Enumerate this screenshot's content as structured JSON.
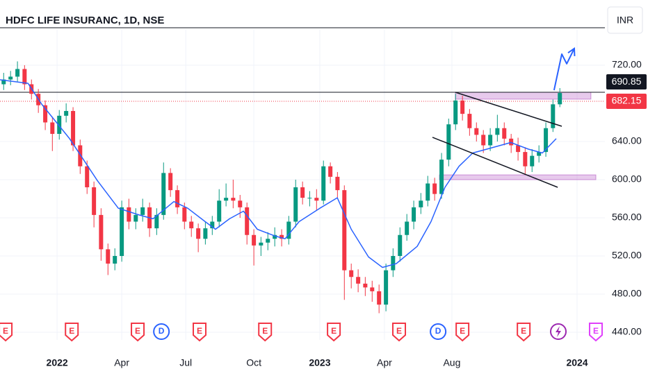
{
  "chart_data": {
    "type": "candlestick",
    "title": "HDFC LIFE INSURANC, 1D, NSE",
    "currency": "INR",
    "xlim": [
      -2.65,
      25.42
    ],
    "ylim": [
      432,
      757.8
    ],
    "xticks": [
      {
        "value": 0,
        "label": "2022"
      },
      {
        "value": 3.0,
        "label": "Apr"
      },
      {
        "value": 5.97,
        "label": "Jul"
      },
      {
        "value": 9.13,
        "label": "Oct"
      },
      {
        "value": 12.19,
        "label": "2023"
      },
      {
        "value": 15.19,
        "label": "Apr"
      },
      {
        "value": 18.32,
        "label": "Aug"
      },
      {
        "value": 24.13,
        "label": "2024"
      }
    ],
    "yticks": [
      {
        "value": 440,
        "label": "440.00"
      },
      {
        "value": 480,
        "label": "480.00"
      },
      {
        "value": 520,
        "label": "520.00"
      },
      {
        "value": 560,
        "label": "560.00"
      },
      {
        "value": 600,
        "label": "600.00"
      },
      {
        "value": 640,
        "label": "640.00"
      },
      {
        "value": 720,
        "label": "720.00"
      }
    ],
    "up_color": "#089981",
    "down_color": "#f23645",
    "x": [
      -2.48,
      -2.16,
      -1.84,
      -1.51,
      -1.19,
      -0.87,
      -0.55,
      -0.22,
      0.1,
      0.42,
      0.74,
      1.07,
      1.39,
      1.71,
      2.04,
      2.36,
      2.68,
      3.0,
      3.33,
      3.65,
      3.97,
      4.29,
      4.62,
      4.94,
      5.26,
      5.58,
      5.91,
      6.23,
      6.55,
      6.88,
      7.2,
      7.52,
      7.84,
      8.17,
      8.49,
      8.81,
      9.13,
      9.46,
      9.78,
      10.1,
      10.42,
      10.75,
      11.07,
      11.39,
      11.72,
      12.04,
      12.36,
      12.68,
      13.01,
      13.33,
      13.65,
      13.97,
      14.3,
      14.62,
      14.94,
      15.26,
      15.59,
      15.91,
      16.23,
      16.55,
      16.88,
      17.2,
      17.52,
      17.84,
      18.17,
      18.49,
      18.81,
      19.14,
      19.46,
      19.78,
      20.1,
      20.43,
      20.75,
      21.07,
      21.39,
      21.72,
      22.04,
      22.36,
      22.68,
      23.01,
      23.33
    ],
    "open": [
      700,
      705,
      708,
      716,
      700,
      690,
      678,
      660,
      648,
      667,
      672,
      636,
      614,
      592,
      563,
      527,
      512,
      520,
      571,
      556,
      563,
      571,
      549,
      563,
      607,
      589,
      571,
      556,
      549,
      538,
      549,
      556,
      578,
      581,
      578,
      571,
      542,
      531,
      534,
      538,
      542,
      538,
      556,
      592,
      581,
      581,
      578,
      614,
      603,
      589,
      505,
      498,
      491,
      487,
      483,
      469,
      505,
      520,
      542,
      556,
      571,
      578,
      596,
      585,
      621,
      658,
      683,
      669,
      654,
      647,
      636,
      647,
      654,
      643,
      636,
      629,
      614,
      625,
      629,
      654,
      679
    ],
    "high": [
      712,
      714,
      724,
      720,
      705,
      695,
      683,
      666,
      673,
      680,
      676,
      642,
      620,
      598,
      570,
      533,
      528,
      578,
      580,
      570,
      580,
      576,
      570,
      618,
      612,
      594,
      576,
      562,
      554,
      556,
      562,
      590,
      596,
      600,
      584,
      576,
      548,
      540,
      545,
      550,
      548,
      562,
      600,
      598,
      588,
      590,
      620,
      618,
      608,
      594,
      512,
      506,
      498,
      494,
      490,
      512,
      528,
      550,
      564,
      578,
      586,
      604,
      602,
      628,
      664,
      690,
      688,
      674,
      660,
      652,
      654,
      668,
      660,
      648,
      644,
      634,
      632,
      636,
      660,
      684,
      696
    ],
    "low": [
      694,
      699,
      703,
      694,
      684,
      670,
      652,
      630,
      642,
      660,
      630,
      606,
      585,
      550,
      515,
      500,
      505,
      514,
      548,
      548,
      556,
      540,
      542,
      558,
      582,
      564,
      548,
      540,
      524,
      532,
      542,
      550,
      572,
      570,
      560,
      532,
      510,
      520,
      526,
      530,
      530,
      532,
      550,
      574,
      572,
      568,
      574,
      596,
      580,
      474,
      486,
      482,
      478,
      472,
      460,
      462,
      498,
      514,
      536,
      548,
      564,
      572,
      578,
      580,
      614,
      652,
      662,
      646,
      640,
      628,
      630,
      640,
      636,
      628,
      620,
      606,
      608,
      618,
      624,
      650,
      676
    ],
    "close": [
      705,
      708,
      716,
      700,
      690,
      678,
      660,
      648,
      667,
      672,
      636,
      614,
      592,
      563,
      527,
      512,
      520,
      571,
      556,
      563,
      571,
      549,
      563,
      607,
      589,
      571,
      556,
      549,
      538,
      549,
      556,
      578,
      581,
      578,
      571,
      542,
      531,
      534,
      538,
      542,
      538,
      556,
      592,
      581,
      581,
      578,
      614,
      603,
      589,
      505,
      498,
      491,
      487,
      483,
      469,
      505,
      520,
      542,
      556,
      571,
      578,
      596,
      585,
      621,
      658,
      683,
      669,
      654,
      647,
      636,
      647,
      654,
      643,
      636,
      629,
      614,
      625,
      629,
      654,
      679,
      690.85
    ],
    "moving_average": {
      "color": "#2962ff",
      "x": [
        -2.65,
        -1.35,
        -0.71,
        0.58,
        1.87,
        2.84,
        3.81,
        4.45,
        5.42,
        6.06,
        6.87,
        7.35,
        8.0,
        8.65,
        9.29,
        10.1,
        10.58,
        11.23,
        12.19,
        13.0,
        13.65,
        14.45,
        15.1,
        15.74,
        16.71,
        17.35,
        18.0,
        18.65,
        19.29,
        19.94,
        21.06,
        21.87,
        22.52,
        23.16
      ],
      "values": [
        704.7,
        701,
        679,
        643,
        599,
        570,
        563,
        559,
        577,
        570,
        556,
        548,
        559,
        567,
        548,
        541,
        538,
        556,
        570,
        581,
        548,
        519,
        508,
        512,
        530,
        556,
        592,
        614,
        628,
        632,
        639,
        632,
        628,
        643
      ]
    },
    "last_price": 690.85,
    "last_price_color": "#131722",
    "previous_close": 682.15,
    "previous_close_color": "#f23645",
    "resistance_line": 691.6,
    "channel_upper": {
      "x": [
        18.48,
        23.42
      ],
      "values": [
        691.6,
        656
      ]
    },
    "channel_lower": {
      "x": [
        17.42,
        23.23
      ],
      "values": [
        644.4,
        592
      ]
    },
    "zones": [
      {
        "x": [
          18.48,
          24.77
        ],
        "values": [
          684.4,
          691.6
        ]
      },
      {
        "x": [
          17.74,
          25.0
        ],
        "values": [
          600,
          605
        ]
      }
    ],
    "projection_arrow": {
      "color": "#2962ff",
      "x": [
        23.06,
        23.42,
        23.65,
        24.0
      ],
      "values": [
        693.8,
        731.6,
        721.5,
        737.5
      ]
    },
    "events": [
      {
        "label": "E",
        "x": -2.39,
        "color": "#f23645"
      },
      {
        "label": "E",
        "x": 0.68,
        "color": "#f23645"
      },
      {
        "label": "E",
        "x": 3.74,
        "color": "#f23645"
      },
      {
        "label": "D",
        "x": 4.84,
        "color": "#2962ff"
      },
      {
        "label": "E",
        "x": 6.61,
        "color": "#f23645"
      },
      {
        "label": "E",
        "x": 9.65,
        "color": "#f23645"
      },
      {
        "label": "E",
        "x": 12.84,
        "color": "#f23645"
      },
      {
        "label": "E",
        "x": 15.87,
        "color": "#f23645"
      },
      {
        "label": "D",
        "x": 17.68,
        "color": "#2962ff"
      },
      {
        "label": "E",
        "x": 18.81,
        "color": "#f23645"
      },
      {
        "label": "E",
        "x": 21.65,
        "color": "#f23645"
      },
      {
        "label": "E",
        "x": 25.0,
        "color": "#e040fb"
      }
    ]
  }
}
